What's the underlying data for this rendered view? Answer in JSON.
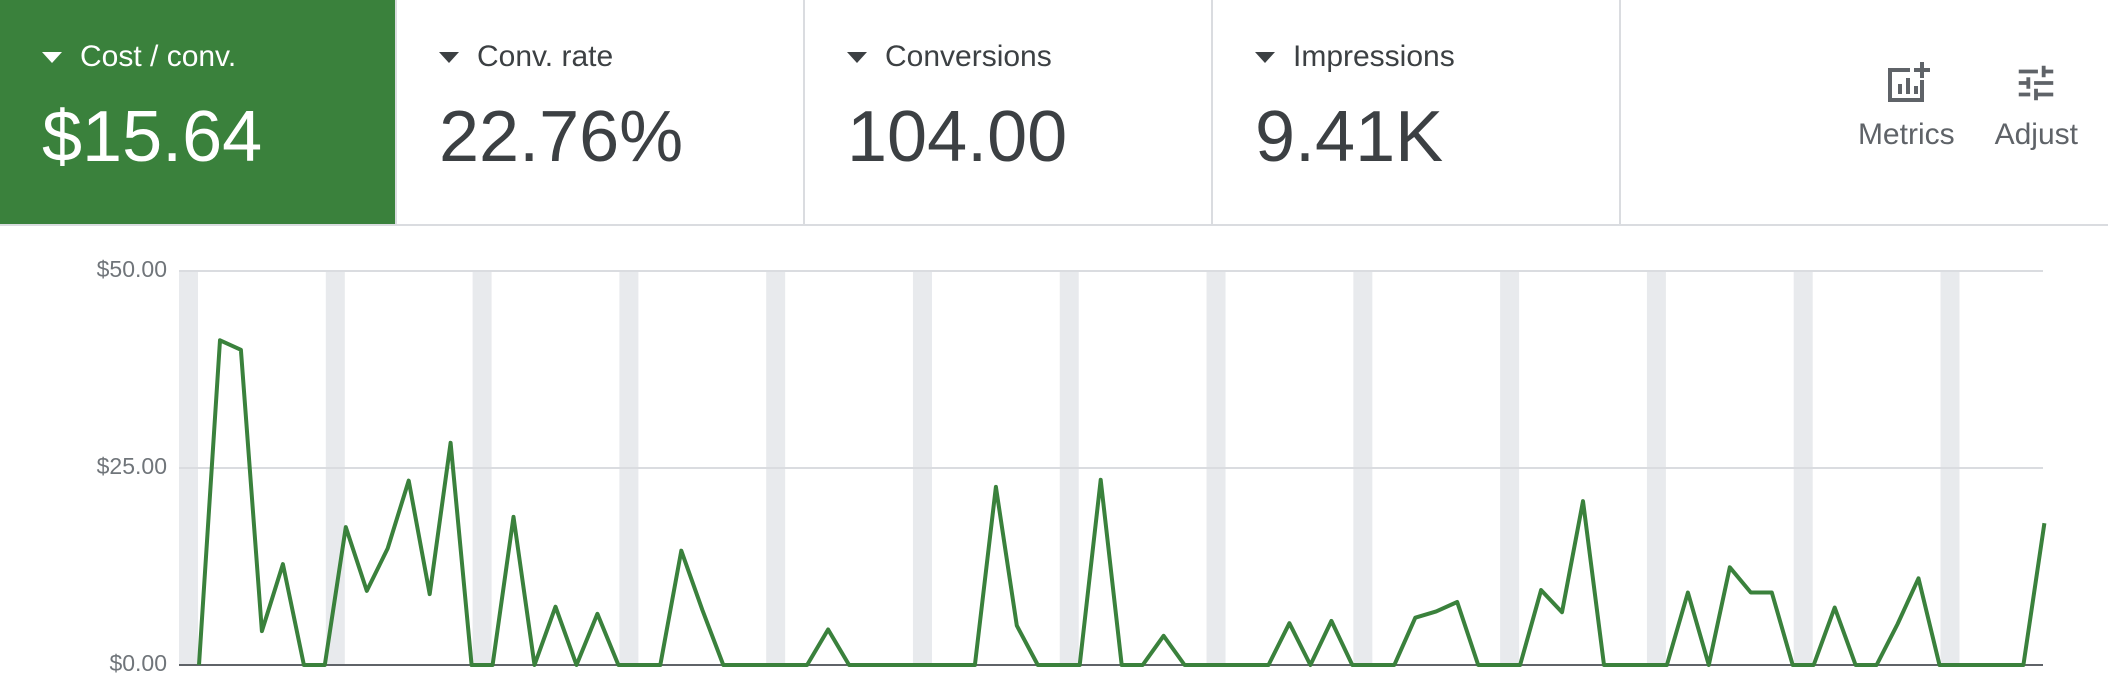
{
  "metric_cards": [
    {
      "label": "Cost / conv.",
      "value": "$15.64",
      "selected": true
    },
    {
      "label": "Conv. rate",
      "value": "22.76%",
      "selected": false
    },
    {
      "label": "Conversions",
      "value": "104.00",
      "selected": false
    },
    {
      "label": "Impressions",
      "value": "9.41K",
      "selected": false
    }
  ],
  "buttons": [
    "Metrics",
    "Adjust"
  ],
  "chart_data": {
    "type": "line",
    "color": "#3a813c",
    "values": [
      0,
      41.2,
      40,
      4.3,
      12.8,
      0,
      0,
      17.5,
      9.4,
      14.8,
      23.4,
      9,
      28.2,
      0,
      0,
      18.8,
      0,
      7.4,
      0,
      6.5,
      0,
      0,
      0,
      14.5,
      7,
      0,
      0,
      0,
      0,
      0,
      4.5,
      0,
      0,
      0,
      0,
      0,
      0,
      0,
      22.6,
      5,
      0,
      0,
      0,
      23.5,
      0,
      0,
      3.7,
      0,
      0,
      0,
      0,
      0,
      5.3,
      0,
      5.6,
      0,
      0,
      0,
      6,
      6.8,
      8,
      0,
      0,
      0,
      9.5,
      6.7,
      20.8,
      0,
      0,
      0,
      0,
      9.2,
      0,
      12.4,
      9.2,
      9.2,
      0,
      0,
      7.3,
      0,
      0,
      5.2,
      11,
      0,
      0,
      0,
      0,
      0,
      18
    ],
    "ylim": [
      0,
      50
    ],
    "yticks": [
      {
        "value": 0,
        "label": "$0.00"
      },
      {
        "value": 25,
        "label": "$25.00"
      },
      {
        "value": 50,
        "label": "$50.00"
      }
    ],
    "grid": true
  }
}
